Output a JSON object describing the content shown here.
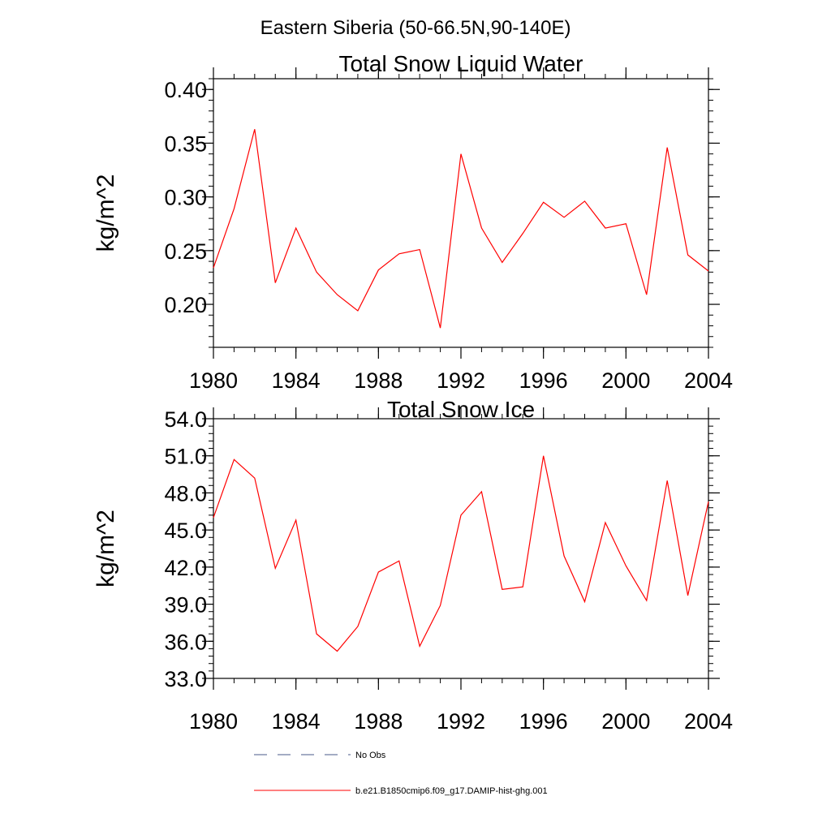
{
  "suptitle": "Eastern Siberia (50-66.5N,90-140E)",
  "chart_data": [
    {
      "type": "line",
      "title": "Total Snow Liquid Water",
      "xlabel": "",
      "ylabel": "kg/m^2",
      "xlim": [
        1980,
        2004
      ],
      "ylim": [
        0.16,
        0.41
      ],
      "xticks": [
        1980,
        1984,
        1988,
        1992,
        1996,
        2000,
        2004
      ],
      "xtick_labels": [
        "1980",
        "1984",
        "1988",
        "1992",
        "1996",
        "2000",
        "2004"
      ],
      "yticks": [
        0.2,
        0.25,
        0.3,
        0.35,
        0.4
      ],
      "ytick_labels": [
        "0.20",
        "0.25",
        "0.30",
        "0.35",
        "0.40"
      ],
      "yminor_step": 0.01,
      "grid": false,
      "x": [
        1980,
        1981,
        1982,
        1983,
        1984,
        1985,
        1986,
        1987,
        1988,
        1989,
        1990,
        1991,
        1992,
        1993,
        1994,
        1995,
        1996,
        1997,
        1998,
        1999,
        2000,
        2001,
        2002,
        2003,
        2004
      ],
      "series": [
        {
          "name": "b.e21.B1850cmip6.f09_g17.DAMIP-hist-ghg.001",
          "color": "#ff0000",
          "values": [
            0.234,
            0.289,
            0.363,
            0.22,
            0.271,
            0.23,
            0.209,
            0.194,
            0.232,
            0.247,
            0.251,
            0.178,
            0.34,
            0.271,
            0.239,
            0.266,
            0.295,
            0.281,
            0.296,
            0.271,
            0.275,
            0.209,
            0.346,
            0.246,
            0.231
          ]
        }
      ]
    },
    {
      "type": "line",
      "title": "Total Snow Ice",
      "xlabel": "",
      "ylabel": "kg/m^2",
      "xlim": [
        1980,
        2004
      ],
      "ylim": [
        33.0,
        54.0
      ],
      "xticks": [
        1980,
        1984,
        1988,
        1992,
        1996,
        2000,
        2004
      ],
      "xtick_labels": [
        "1980",
        "1984",
        "1988",
        "1992",
        "1996",
        "2000",
        "2004"
      ],
      "yticks": [
        33.0,
        36.0,
        39.0,
        42.0,
        45.0,
        48.0,
        51.0,
        54.0
      ],
      "ytick_labels": [
        "33.0",
        "36.0",
        "39.0",
        "42.0",
        "45.0",
        "48.0",
        "51.0",
        "54.0"
      ],
      "yminor_step": 0.6,
      "grid": false,
      "x": [
        1980,
        1981,
        1982,
        1983,
        1984,
        1985,
        1986,
        1987,
        1988,
        1989,
        1990,
        1991,
        1992,
        1993,
        1994,
        1995,
        1996,
        1997,
        1998,
        1999,
        2000,
        2001,
        2002,
        2003,
        2004
      ],
      "series": [
        {
          "name": "b.e21.B1850cmip6.f09_g17.DAMIP-hist-ghg.001",
          "color": "#ff0000",
          "values": [
            46.0,
            50.7,
            49.2,
            41.9,
            45.8,
            36.6,
            35.2,
            37.2,
            41.6,
            42.5,
            35.6,
            38.9,
            46.2,
            48.1,
            40.2,
            40.4,
            51.0,
            42.9,
            39.2,
            45.6,
            42.1,
            39.3,
            49.0,
            39.7,
            47.3
          ]
        }
      ]
    }
  ],
  "legend": {
    "placement": "bottom",
    "entries": [
      {
        "label": "No Obs",
        "color": "#4a5a8a",
        "style": "dashed"
      },
      {
        "label": "b.e21.B1850cmip6.f09_g17.DAMIP-hist-ghg.001",
        "color": "#ff0000",
        "style": "solid"
      }
    ]
  }
}
